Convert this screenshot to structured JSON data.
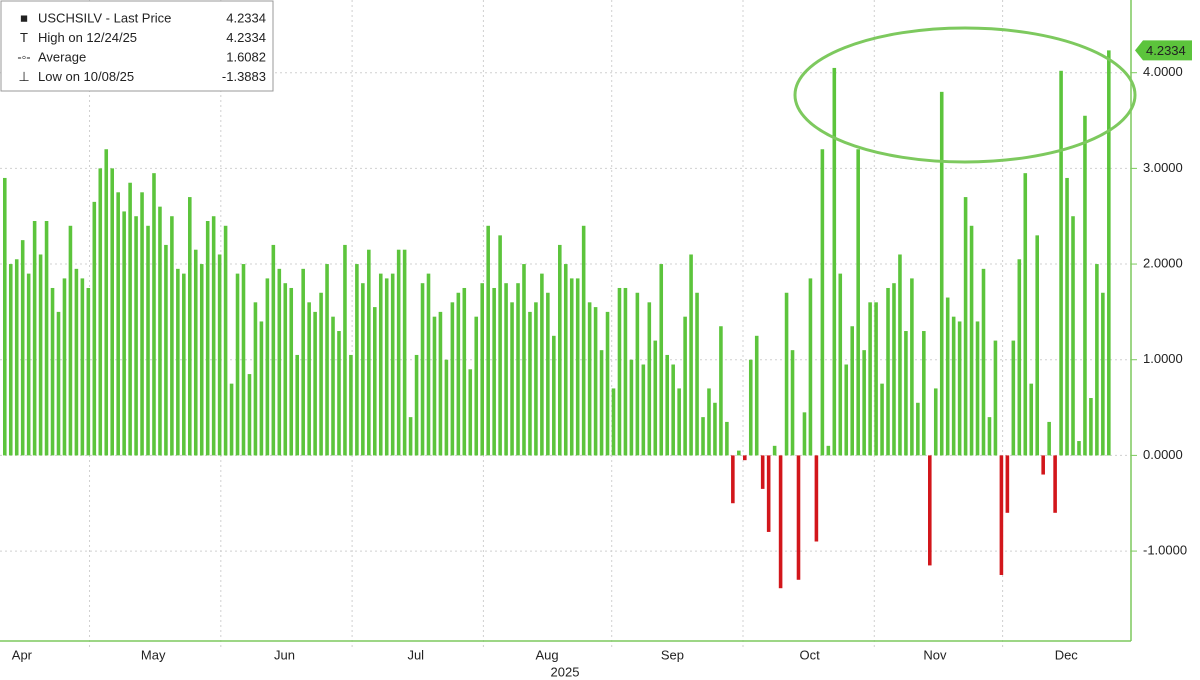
{
  "chart_data": {
    "type": "bar",
    "legend": [
      {
        "label": "USCHSILV - Last Price",
        "value": 4.2334
      },
      {
        "label": "High on 12/24/25",
        "value": 4.2334
      },
      {
        "label": "Average",
        "value": 1.6082
      },
      {
        "label": "Low on 10/08/25",
        "value": -1.3883
      }
    ],
    "x_label": "2025",
    "color": "#5cc43c",
    "negative_color": "#d2161b",
    "ylim": [
      -1.94,
      4.76
    ],
    "yticks": [
      {
        "value": -1,
        "label": "-1.0000"
      },
      {
        "value": 0,
        "label": "0.0000"
      },
      {
        "value": 1,
        "label": "1.0000"
      },
      {
        "value": 2,
        "label": "2.0000"
      },
      {
        "value": 3,
        "label": "3.0000"
      },
      {
        "value": 4,
        "label": "4.0000"
      }
    ],
    "grid": true,
    "categories": [
      null,
      null,
      null,
      "Apr",
      null,
      null,
      null,
      null,
      null,
      null,
      null,
      null,
      null,
      null,
      null,
      null,
      null,
      null,
      null,
      null,
      null,
      null,
      null,
      null,
      null,
      "May",
      null,
      null,
      null,
      null,
      null,
      null,
      null,
      null,
      null,
      null,
      null,
      null,
      null,
      null,
      null,
      null,
      null,
      null,
      null,
      null,
      null,
      "Jun",
      null,
      null,
      null,
      null,
      null,
      null,
      null,
      null,
      null,
      null,
      null,
      null,
      null,
      null,
      null,
      null,
      null,
      null,
      null,
      null,
      null,
      "Jul",
      null,
      null,
      null,
      null,
      null,
      null,
      null,
      null,
      null,
      null,
      null,
      null,
      null,
      null,
      null,
      null,
      null,
      null,
      null,
      null,
      null,
      "Aug",
      null,
      null,
      null,
      null,
      null,
      null,
      null,
      null,
      null,
      null,
      null,
      null,
      null,
      null,
      null,
      null,
      null,
      null,
      null,
      null,
      "Sep",
      null,
      null,
      null,
      null,
      null,
      null,
      null,
      null,
      null,
      null,
      null,
      null,
      null,
      null,
      null,
      null,
      null,
      null,
      null,
      null,
      null,
      null,
      "Oct",
      null,
      null,
      null,
      null,
      null,
      null,
      null,
      null,
      null,
      null,
      null,
      null,
      null,
      null,
      null,
      null,
      null,
      null,
      null,
      null,
      "Nov",
      null,
      null,
      null,
      null,
      null,
      null,
      null,
      null,
      null,
      null,
      null,
      null,
      null,
      null,
      null,
      null,
      null,
      null,
      null,
      null,
      null,
      "Dec",
      null,
      null,
      null,
      null,
      null,
      null,
      null
    ],
    "values": [
      2.9,
      2.0,
      2.05,
      2.25,
      1.9,
      2.45,
      2.1,
      2.45,
      1.75,
      1.5,
      1.85,
      2.4,
      1.95,
      1.85,
      1.75,
      2.65,
      3.0,
      3.2,
      3.0,
      2.75,
      2.55,
      2.85,
      2.5,
      2.75,
      2.4,
      2.95,
      2.6,
      2.2,
      2.5,
      1.95,
      1.9,
      2.7,
      2.15,
      2.0,
      2.45,
      2.5,
      2.1,
      2.4,
      0.75,
      1.9,
      2.0,
      0.85,
      1.6,
      1.4,
      1.85,
      2.2,
      1.95,
      1.8,
      1.75,
      1.05,
      1.95,
      1.6,
      1.5,
      1.7,
      2.0,
      1.45,
      1.3,
      2.2,
      1.05,
      2.0,
      1.8,
      2.15,
      1.55,
      1.9,
      1.85,
      1.9,
      2.15,
      2.15,
      0.4,
      1.05,
      1.8,
      1.9,
      1.45,
      1.5,
      1.0,
      1.6,
      1.7,
      1.75,
      0.9,
      1.45,
      1.8,
      2.4,
      1.75,
      2.3,
      1.8,
      1.6,
      1.8,
      2.0,
      1.5,
      1.6,
      1.9,
      1.7,
      1.25,
      2.2,
      2.0,
      1.85,
      1.85,
      2.4,
      1.6,
      1.55,
      1.1,
      1.5,
      0.7,
      1.75,
      1.75,
      1.0,
      1.7,
      0.95,
      1.6,
      1.2,
      2.0,
      1.05,
      0.95,
      0.7,
      1.45,
      2.1,
      1.7,
      0.4,
      0.7,
      0.55,
      1.35,
      0.35,
      -0.5,
      0.05,
      -0.05,
      1.0,
      1.25,
      -0.35,
      -0.8,
      0.1,
      -1.3883,
      1.7,
      1.1,
      -1.3,
      0.45,
      1.85,
      -0.9,
      3.2,
      0.1,
      4.05,
      1.9,
      0.95,
      1.35,
      3.2,
      1.1,
      1.6,
      1.6,
      0.75,
      1.75,
      1.8,
      2.1,
      1.3,
      1.85,
      0.55,
      1.3,
      -1.15,
      0.7,
      3.8,
      1.65,
      1.45,
      1.4,
      2.7,
      2.4,
      1.4,
      1.95,
      0.4,
      1.2,
      -1.25,
      -0.6,
      1.2,
      2.05,
      2.95,
      0.75,
      2.3,
      -0.2,
      0.35,
      -0.6,
      4.02,
      2.9,
      2.5,
      0.15,
      3.55,
      0.6,
      2.0,
      1.7,
      4.2334
    ]
  }
}
